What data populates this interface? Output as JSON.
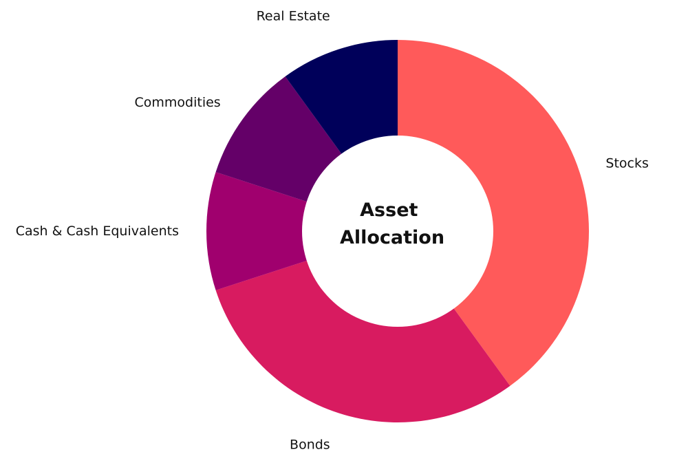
{
  "chart_data": {
    "type": "pie",
    "variant": "donut",
    "center_title_lines": [
      "Asset",
      "Allocation"
    ],
    "slices": [
      {
        "label": "Stocks",
        "value": 40,
        "color": "#FF5A5A"
      },
      {
        "label": "Bonds",
        "value": 30,
        "color": "#D81B60"
      },
      {
        "label": "Cash & Cash Equivalents",
        "value": 10,
        "color": "#A0006E"
      },
      {
        "label": "Commodities",
        "value": 10,
        "color": "#640068"
      },
      {
        "label": "Real Estate",
        "value": 10,
        "color": "#00005A"
      }
    ],
    "start_position": "top",
    "direction": "clockwise",
    "legend": "none"
  }
}
